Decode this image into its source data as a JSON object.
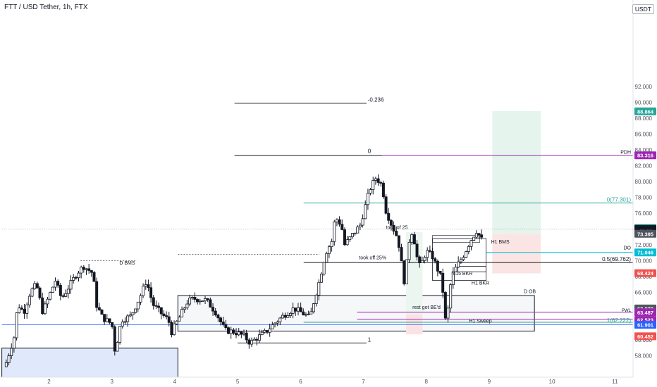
{
  "header": {
    "title": "FTT / USD Tether, 1h, FTX",
    "currency": "USDT"
  },
  "chart_data": {
    "type": "candlestick",
    "ylim": [
      56.6,
      92.0
    ],
    "y_ticks": [
      58,
      60,
      62,
      64,
      66,
      68,
      70,
      72,
      74,
      76,
      78,
      80,
      82,
      84,
      86,
      88,
      90,
      92
    ],
    "y_tick_labels": [
      "58.000",
      "60.000",
      "62.000",
      "64.000",
      "66.000",
      "68.000",
      "70.000",
      "72.000",
      "74.000",
      "76.000",
      "78.000",
      "80.000",
      "82.000",
      "84.000",
      "86.000",
      "88.000",
      "90.000",
      "92.000"
    ],
    "xlim": [
      1.25,
      11.5
    ],
    "x_ticks": [
      2,
      3,
      4,
      5,
      6,
      7,
      8,
      9,
      10,
      11
    ],
    "x_tick_labels": [
      "2",
      "3",
      "4",
      "5",
      "6",
      "7",
      "8",
      "9",
      "10",
      "11"
    ],
    "grid": false,
    "candle_count": 185,
    "anchors": [
      [
        1.3,
        56.6
      ],
      [
        1.45,
        60.5
      ],
      [
        1.5,
        64.5
      ],
      [
        1.6,
        63.5
      ],
      [
        1.7,
        66
      ],
      [
        1.8,
        67
      ],
      [
        1.9,
        63.5
      ],
      [
        2.0,
        65.5
      ],
      [
        2.1,
        67.5
      ],
      [
        2.2,
        65.2
      ],
      [
        2.3,
        66.5
      ],
      [
        2.45,
        68.5
      ],
      [
        2.55,
        69.3
      ],
      [
        2.7,
        68.4
      ],
      [
        2.75,
        64.5
      ],
      [
        2.85,
        62.8
      ],
      [
        3.0,
        62.0
      ],
      [
        3.05,
        58.5
      ],
      [
        3.15,
        62.5
      ],
      [
        3.3,
        63.0
      ],
      [
        3.45,
        65.5
      ],
      [
        3.55,
        67.5
      ],
      [
        3.65,
        64.5
      ],
      [
        3.8,
        63.2
      ],
      [
        3.9,
        62.5
      ],
      [
        3.95,
        61.0
      ],
      [
        4.05,
        62.5
      ],
      [
        4.2,
        64.8
      ],
      [
        4.3,
        65.2
      ],
      [
        4.5,
        65.0
      ],
      [
        4.65,
        63.5
      ],
      [
        4.8,
        61.2
      ],
      [
        4.95,
        61.0
      ],
      [
        5.1,
        60.5
      ],
      [
        5.2,
        59.6
      ],
      [
        5.3,
        60.2
      ],
      [
        5.45,
        61.0
      ],
      [
        5.6,
        62.2
      ],
      [
        5.75,
        63.2
      ],
      [
        5.9,
        64.0
      ],
      [
        6.0,
        63.5
      ],
      [
        6.15,
        62.8
      ],
      [
        6.2,
        64.5
      ],
      [
        6.3,
        67.5
      ],
      [
        6.4,
        71.0
      ],
      [
        6.5,
        72.5
      ],
      [
        6.55,
        75.5
      ],
      [
        6.65,
        74.5
      ],
      [
        6.7,
        72.0
      ],
      [
        6.85,
        73.5
      ],
      [
        6.95,
        74.5
      ],
      [
        7.1,
        79.0
      ],
      [
        7.2,
        80.5
      ],
      [
        7.3,
        79.5
      ],
      [
        7.35,
        76.5
      ],
      [
        7.45,
        74.5
      ],
      [
        7.55,
        72.8
      ],
      [
        7.6,
        70.0
      ],
      [
        7.65,
        67.3
      ],
      [
        7.7,
        70.5
      ],
      [
        7.75,
        74.0
      ],
      [
        7.8,
        73.0
      ],
      [
        7.85,
        70.5
      ],
      [
        7.9,
        69.2
      ],
      [
        8.0,
        71.2
      ],
      [
        8.1,
        70.5
      ],
      [
        8.2,
        68.5
      ],
      [
        8.25,
        67.5
      ],
      [
        8.3,
        62.4
      ],
      [
        8.35,
        64.0
      ],
      [
        8.4,
        68.0
      ],
      [
        8.5,
        69.5
      ],
      [
        8.6,
        70.8
      ],
      [
        8.7,
        72.5
      ],
      [
        8.8,
        73.8
      ],
      [
        8.9,
        72.4
      ]
    ],
    "last_price": 74.013,
    "countdown": "41:29"
  },
  "annotations": {
    "fib_top": "-0.236",
    "fib_zero": "0",
    "fib_one": "1",
    "fib_0": "0(77.301)",
    "fib_05": "0.5(69.762)",
    "fib_1": "1(62.222)",
    "pdh": "PDH",
    "do": "DO",
    "pwl": "PWL",
    "d_bms": "D BMS",
    "d_ob": "D OB",
    "h1_bms": "H1 BMS",
    "h1_bkr": "H1 BKR",
    "m15_bkr": "m15 BKR",
    "h1_sweep": "H1 Sweep",
    "took_off_25": "took off 25%",
    "took_25": "took of 25",
    "rest_got_be": "rest got BE'd"
  },
  "price_labels": [
    {
      "text": "88.864",
      "value": 88.864,
      "color": "#26a69a"
    },
    {
      "text": "83.316",
      "value": 83.316,
      "color": "#9c27b0"
    },
    {
      "text": "74.138",
      "value": 74.138,
      "color": "#26a69a"
    },
    {
      "text": "74.013",
      "value": 74.013,
      "color": "#131722"
    },
    {
      "text": "41:29",
      "value": 73.72,
      "color": "#131722"
    },
    {
      "text": "73.395",
      "value": 73.395,
      "color": "#50535e"
    },
    {
      "text": "71.046",
      "value": 71.046,
      "color": "#00bcd4"
    },
    {
      "text": "68.424",
      "value": 68.424,
      "color": "#ef5350"
    },
    {
      "text": "63.970",
      "value": 63.97,
      "color": "#50535e"
    },
    {
      "text": "63.487",
      "value": 63.487,
      "color": "#9c27b0"
    },
    {
      "text": "62.523",
      "value": 62.523,
      "color": "#9c27b0"
    },
    {
      "text": "61.901",
      "value": 61.901,
      "color": "#2962ff"
    },
    {
      "text": "60.452",
      "value": 60.452,
      "color": "#ef5350"
    }
  ]
}
